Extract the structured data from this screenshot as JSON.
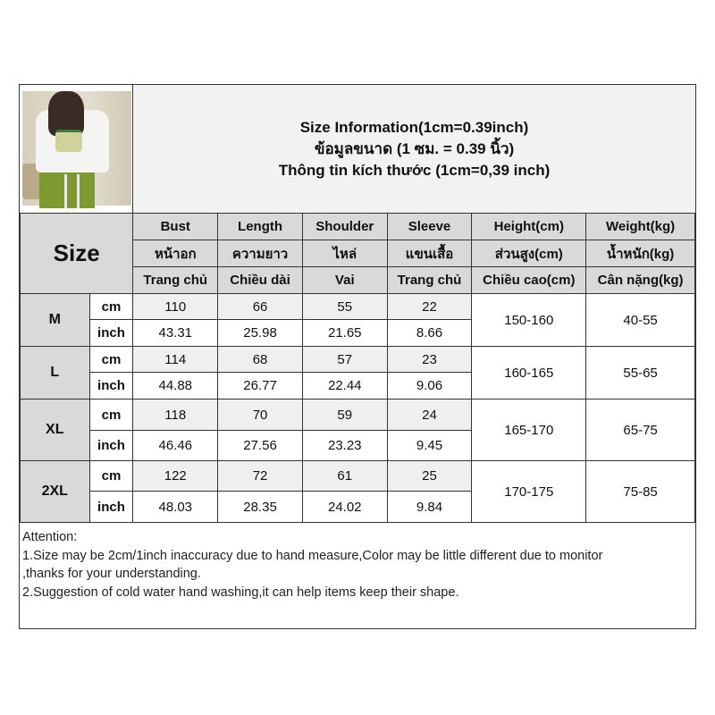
{
  "title": {
    "line1": "Size Information(1cm=0.39inch)",
    "line2": "ข้อมูลขนาด (1 ซม. = 0.39 นิ้ว)",
    "line3": "Thông tin kích thước (1cm=0,39 inch)"
  },
  "size_label": "Size",
  "columns": [
    {
      "en": "Bust",
      "th": "หน้าอก",
      "vi": "Trang chủ"
    },
    {
      "en": "Length",
      "th": "ความยาว",
      "vi": "Chiều dài"
    },
    {
      "en": "Shoulder",
      "th": "ไหล่",
      "vi": "Vai"
    },
    {
      "en": "Sleeve",
      "th": "แขนเสื้อ",
      "vi": "Trang chủ"
    },
    {
      "en": "Height(cm)",
      "th": "ส่วนสูง(cm)",
      "vi": "Chiều cao(cm)"
    },
    {
      "en": "Weight(kg)",
      "th": "น้ำหนัก(kg)",
      "vi": "Cân nặng(kg)"
    }
  ],
  "units": {
    "cm": "cm",
    "inch": "inch"
  },
  "rows": [
    {
      "size": "M",
      "cm": [
        "110",
        "66",
        "55",
        "22"
      ],
      "inch": [
        "43.31",
        "25.98",
        "21.65",
        "8.66"
      ],
      "height": "150-160",
      "weight": "40-55"
    },
    {
      "size": "L",
      "cm": [
        "114",
        "68",
        "57",
        "23"
      ],
      "inch": [
        "44.88",
        "26.77",
        "22.44",
        "9.06"
      ],
      "height": "160-165",
      "weight": "55-65"
    },
    {
      "size": "XL",
      "cm": [
        "118",
        "70",
        "59",
        "24"
      ],
      "inch": [
        "46.46",
        "27.56",
        "23.23",
        "9.45"
      ],
      "height": "165-170",
      "weight": "65-75"
    },
    {
      "size": "2XL",
      "cm": [
        "122",
        "72",
        "61",
        "25"
      ],
      "inch": [
        "48.03",
        "28.35",
        "24.02",
        "9.84"
      ],
      "height": "170-175",
      "weight": "75-85"
    }
  ],
  "notes": {
    "heading": "Attention:",
    "line1": "1.Size may be 2cm/1inch inaccuracy due to hand measure,Color may be little different due to monitor",
    "line2": ",thanks for your understanding.",
    "line3": "2.Suggestion of cold water hand washing,it can help items keep their shape."
  }
}
